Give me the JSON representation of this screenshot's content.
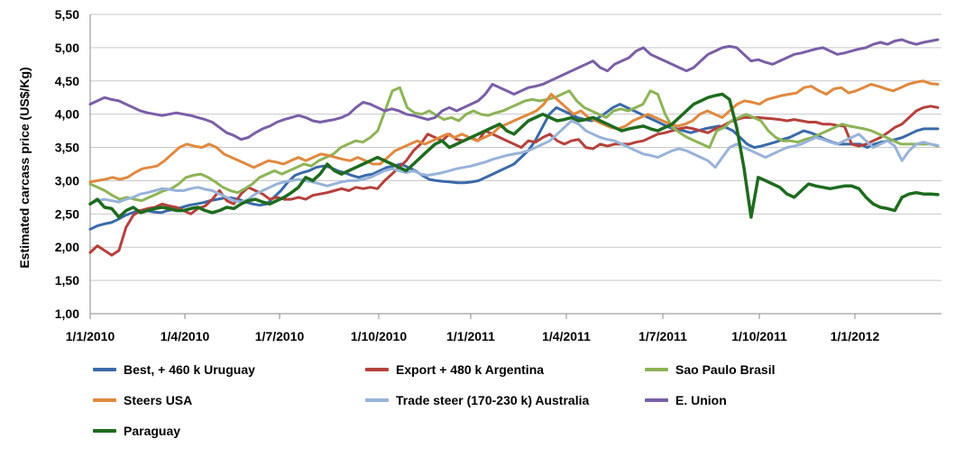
{
  "chart_data": {
    "type": "line",
    "ylabel": "Estimated carcass price (US$/Kg)",
    "ylim": [
      1.0,
      5.5
    ],
    "yticks": [
      "1,00",
      "1,50",
      "2,00",
      "2,50",
      "3,00",
      "3,50",
      "4,00",
      "4,50",
      "5,00",
      "5,50"
    ],
    "xticks": [
      "1/1/2010",
      "1/4/2010",
      "1/7/2010",
      "1/10/2010",
      "1/1/2011",
      "1/4/2011",
      "1/7/2011",
      "1/10/2011",
      "1/1/2012"
    ],
    "grid": "horizontal",
    "legend": "bottom",
    "x_start": "1/1/2010",
    "x_end": "1/4/2012",
    "series": [
      {
        "name": "Best, + 460 k Uruguay",
        "color": "#3a6aa8",
        "values": [
          2.27,
          2.32,
          2.35,
          2.37,
          2.42,
          2.48,
          2.52,
          2.55,
          2.55,
          2.53,
          2.52,
          2.55,
          2.57,
          2.6,
          2.63,
          2.65,
          2.67,
          2.7,
          2.72,
          2.74,
          2.74,
          2.72,
          2.68,
          2.65,
          2.63,
          2.65,
          2.75,
          2.85,
          2.98,
          3.08,
          3.12,
          3.15,
          3.2,
          3.22,
          3.2,
          3.15,
          3.12,
          3.08,
          3.05,
          3.08,
          3.1,
          3.15,
          3.2,
          3.22,
          3.25,
          3.2,
          3.15,
          3.08,
          3.02,
          3.0,
          2.99,
          2.98,
          2.97,
          2.97,
          2.98,
          3.0,
          3.05,
          3.1,
          3.15,
          3.2,
          3.25,
          3.35,
          3.45,
          3.6,
          3.8,
          4.0,
          4.1,
          4.05,
          4.0,
          3.95,
          3.92,
          3.9,
          3.95,
          4.02,
          4.1,
          4.15,
          4.1,
          4.05,
          4.0,
          3.95,
          3.9,
          3.85,
          3.8,
          3.78,
          3.75,
          3.72,
          3.75,
          3.78,
          3.8,
          3.82,
          3.8,
          3.75,
          3.65,
          3.55,
          3.5,
          3.52,
          3.55,
          3.58,
          3.62,
          3.65,
          3.7,
          3.75,
          3.72,
          3.68,
          3.62,
          3.58,
          3.55,
          3.55,
          3.55,
          3.55,
          3.5,
          3.55,
          3.58,
          3.6,
          3.62,
          3.65,
          3.7,
          3.75,
          3.78,
          3.78,
          3.78
        ]
      },
      {
        "name": "Export + 480 k Argentina",
        "color": "#b5413c",
        "values": [
          1.92,
          2.02,
          1.95,
          1.88,
          1.95,
          2.3,
          2.48,
          2.55,
          2.58,
          2.6,
          2.65,
          2.62,
          2.6,
          2.55,
          2.5,
          2.58,
          2.62,
          2.72,
          2.85,
          2.7,
          2.65,
          2.8,
          2.9,
          2.85,
          2.8,
          2.72,
          2.75,
          2.72,
          2.72,
          2.75,
          2.72,
          2.78,
          2.8,
          2.82,
          2.85,
          2.88,
          2.85,
          2.9,
          2.88,
          2.9,
          2.88,
          3.0,
          3.1,
          3.2,
          3.3,
          3.45,
          3.55,
          3.7,
          3.65,
          3.6,
          3.7,
          3.62,
          3.6,
          3.65,
          3.6,
          3.75,
          3.7,
          3.65,
          3.6,
          3.55,
          3.5,
          3.6,
          3.58,
          3.65,
          3.7,
          3.6,
          3.55,
          3.6,
          3.62,
          3.5,
          3.48,
          3.55,
          3.52,
          3.55,
          3.55,
          3.55,
          3.58,
          3.6,
          3.65,
          3.7,
          3.72,
          3.75,
          3.78,
          3.8,
          3.78,
          3.75,
          3.72,
          3.78,
          3.82,
          3.88,
          3.92,
          3.95,
          3.95,
          3.95,
          3.94,
          3.93,
          3.92,
          3.9,
          3.92,
          3.9,
          3.88,
          3.88,
          3.85,
          3.85,
          3.83,
          3.82,
          3.55,
          3.52,
          3.55,
          3.6,
          3.65,
          3.72,
          3.8,
          3.85,
          3.95,
          4.05,
          4.1,
          4.12,
          4.1
        ]
      },
      {
        "name": "Sao Paulo Brasil",
        "color": "#8db456",
        "values": [
          2.95,
          2.9,
          2.85,
          2.78,
          2.72,
          2.75,
          2.72,
          2.7,
          2.75,
          2.8,
          2.85,
          2.88,
          2.95,
          3.05,
          3.08,
          3.1,
          3.05,
          2.98,
          2.9,
          2.85,
          2.82,
          2.88,
          2.95,
          3.05,
          3.1,
          3.15,
          3.1,
          3.15,
          3.2,
          3.25,
          3.22,
          3.3,
          3.35,
          3.4,
          3.5,
          3.55,
          3.6,
          3.58,
          3.65,
          3.75,
          4.05,
          4.35,
          4.4,
          4.1,
          4.02,
          4.0,
          4.05,
          3.98,
          3.92,
          3.95,
          3.9,
          4.0,
          4.05,
          4.0,
          3.98,
          4.02,
          4.05,
          4.1,
          4.15,
          4.2,
          4.22,
          4.2,
          4.22,
          4.25,
          4.3,
          4.35,
          4.2,
          4.1,
          4.05,
          4.0,
          3.95,
          4.05,
          4.08,
          4.05,
          4.1,
          4.15,
          4.35,
          4.3,
          4.0,
          3.8,
          3.72,
          3.65,
          3.6,
          3.55,
          3.5,
          3.75,
          3.8,
          3.9,
          3.95,
          4.0,
          3.95,
          3.9,
          3.75,
          3.65,
          3.6,
          3.6,
          3.58,
          3.62,
          3.65,
          3.7,
          3.75,
          3.8,
          3.85,
          3.82,
          3.8,
          3.78,
          3.75,
          3.7,
          3.65,
          3.6,
          3.55,
          3.55,
          3.55,
          3.55,
          3.55,
          3.52
        ]
      },
      {
        "name": "Steers USA",
        "color": "#e0893f",
        "values": [
          2.98,
          3.0,
          3.02,
          3.05,
          3.02,
          3.05,
          3.12,
          3.18,
          3.2,
          3.22,
          3.3,
          3.4,
          3.5,
          3.55,
          3.52,
          3.5,
          3.55,
          3.5,
          3.4,
          3.35,
          3.3,
          3.25,
          3.2,
          3.25,
          3.3,
          3.28,
          3.25,
          3.3,
          3.35,
          3.3,
          3.35,
          3.4,
          3.38,
          3.35,
          3.32,
          3.3,
          3.35,
          3.3,
          3.25,
          3.25,
          3.35,
          3.45,
          3.5,
          3.55,
          3.6,
          3.55,
          3.6,
          3.65,
          3.7,
          3.65,
          3.7,
          3.65,
          3.6,
          3.65,
          3.7,
          3.8,
          3.85,
          3.9,
          3.95,
          4.0,
          4.05,
          4.15,
          4.3,
          4.2,
          4.1,
          4.0,
          4.05,
          3.95,
          3.9,
          3.85,
          3.8,
          3.78,
          3.82,
          3.9,
          3.95,
          4.0,
          3.95,
          3.9,
          3.85,
          3.82,
          3.85,
          3.9,
          4.0,
          4.05,
          4.0,
          3.95,
          4.05,
          4.15,
          4.2,
          4.18,
          4.15,
          4.22,
          4.25,
          4.28,
          4.3,
          4.32,
          4.4,
          4.42,
          4.35,
          4.3,
          4.38,
          4.4,
          4.32,
          4.35,
          4.4,
          4.45,
          4.42,
          4.38,
          4.35,
          4.4,
          4.45,
          4.48,
          4.5,
          4.46,
          4.45
        ]
      },
      {
        "name": "Trade steer (170-230 k) Australia",
        "color": "#98b3d9",
        "values": [
          2.65,
          2.7,
          2.72,
          2.7,
          2.68,
          2.72,
          2.75,
          2.8,
          2.82,
          2.85,
          2.88,
          2.87,
          2.85,
          2.85,
          2.88,
          2.9,
          2.87,
          2.85,
          2.8,
          2.75,
          2.7,
          2.68,
          2.72,
          2.8,
          2.85,
          2.9,
          2.95,
          2.98,
          3.0,
          3.02,
          3.0,
          2.98,
          2.95,
          2.92,
          2.95,
          2.98,
          3.0,
          3.0,
          3.02,
          3.05,
          3.1,
          3.15,
          3.18,
          3.15,
          3.12,
          3.15,
          3.1,
          3.08,
          3.1,
          3.12,
          3.15,
          3.18,
          3.2,
          3.22,
          3.25,
          3.28,
          3.32,
          3.35,
          3.38,
          3.4,
          3.42,
          3.45,
          3.5,
          3.55,
          3.6,
          3.7,
          3.8,
          3.9,
          3.85,
          3.75,
          3.7,
          3.65,
          3.62,
          3.6,
          3.55,
          3.5,
          3.45,
          3.4,
          3.38,
          3.35,
          3.4,
          3.45,
          3.48,
          3.45,
          3.4,
          3.35,
          3.3,
          3.2,
          3.35,
          3.5,
          3.55,
          3.5,
          3.45,
          3.4,
          3.35,
          3.4,
          3.45,
          3.5,
          3.52,
          3.55,
          3.6,
          3.65,
          3.62,
          3.58,
          3.55,
          3.6,
          3.65,
          3.7,
          3.6,
          3.5,
          3.55,
          3.6,
          3.52,
          3.3,
          3.45,
          3.55,
          3.58,
          3.55,
          3.53
        ]
      },
      {
        "name": "E. Union",
        "color": "#7a5ea6",
        "values": [
          4.15,
          4.2,
          4.25,
          4.22,
          4.2,
          4.15,
          4.1,
          4.05,
          4.02,
          4.0,
          3.98,
          4.0,
          4.02,
          4.0,
          3.98,
          3.95,
          3.92,
          3.88,
          3.8,
          3.72,
          3.68,
          3.62,
          3.65,
          3.72,
          3.78,
          3.82,
          3.88,
          3.92,
          3.95,
          3.98,
          3.95,
          3.9,
          3.88,
          3.9,
          3.92,
          3.95,
          4.0,
          4.1,
          4.18,
          4.15,
          4.1,
          4.05,
          4.08,
          4.05,
          4.0,
          3.98,
          3.95,
          3.92,
          3.95,
          4.05,
          4.1,
          4.05,
          4.1,
          4.15,
          4.2,
          4.3,
          4.45,
          4.4,
          4.35,
          4.3,
          4.35,
          4.4,
          4.42,
          4.45,
          4.5,
          4.55,
          4.6,
          4.65,
          4.7,
          4.75,
          4.8,
          4.7,
          4.65,
          4.75,
          4.8,
          4.85,
          4.95,
          5.0,
          4.9,
          4.85,
          4.8,
          4.75,
          4.7,
          4.65,
          4.7,
          4.8,
          4.9,
          4.95,
          5.0,
          5.02,
          5.0,
          4.9,
          4.8,
          4.82,
          4.78,
          4.75,
          4.8,
          4.85,
          4.9,
          4.92,
          4.95,
          4.98,
          5.0,
          4.95,
          4.9,
          4.92,
          4.95,
          4.98,
          5.0,
          5.05,
          5.08,
          5.05,
          5.1,
          5.12,
          5.08,
          5.05,
          5.08,
          5.1,
          5.12
        ]
      },
      {
        "name": "Paraguay",
        "color": "#1e6b1e",
        "values": [
          2.65,
          2.72,
          2.6,
          2.58,
          2.45,
          2.55,
          2.6,
          2.52,
          2.55,
          2.58,
          2.6,
          2.58,
          2.55,
          2.55,
          2.58,
          2.6,
          2.55,
          2.52,
          2.55,
          2.6,
          2.58,
          2.65,
          2.7,
          2.72,
          2.68,
          2.65,
          2.7,
          2.75,
          2.82,
          2.9,
          3.05,
          3.0,
          3.1,
          3.25,
          3.15,
          3.1,
          3.15,
          3.2,
          3.25,
          3.3,
          3.35,
          3.3,
          3.25,
          3.2,
          3.15,
          3.25,
          3.35,
          3.45,
          3.55,
          3.6,
          3.5,
          3.55,
          3.6,
          3.65,
          3.7,
          3.75,
          3.8,
          3.85,
          3.75,
          3.7,
          3.8,
          3.9,
          3.95,
          4.0,
          3.95,
          3.9,
          3.92,
          3.95,
          3.9,
          3.92,
          3.95,
          3.9,
          3.85,
          3.8,
          3.75,
          3.78,
          3.8,
          3.82,
          3.78,
          3.75,
          3.8,
          3.85,
          3.95,
          4.05,
          4.15,
          4.2,
          4.25,
          4.28,
          4.3,
          4.22,
          3.8,
          3.2,
          2.45,
          3.05,
          3.0,
          2.95,
          2.9,
          2.8,
          2.75,
          2.85,
          2.95,
          2.92,
          2.9,
          2.88,
          2.9,
          2.92,
          2.92,
          2.88,
          2.75,
          2.65,
          2.6,
          2.58,
          2.55,
          2.75,
          2.8,
          2.82,
          2.8,
          2.8,
          2.79
        ]
      }
    ]
  }
}
